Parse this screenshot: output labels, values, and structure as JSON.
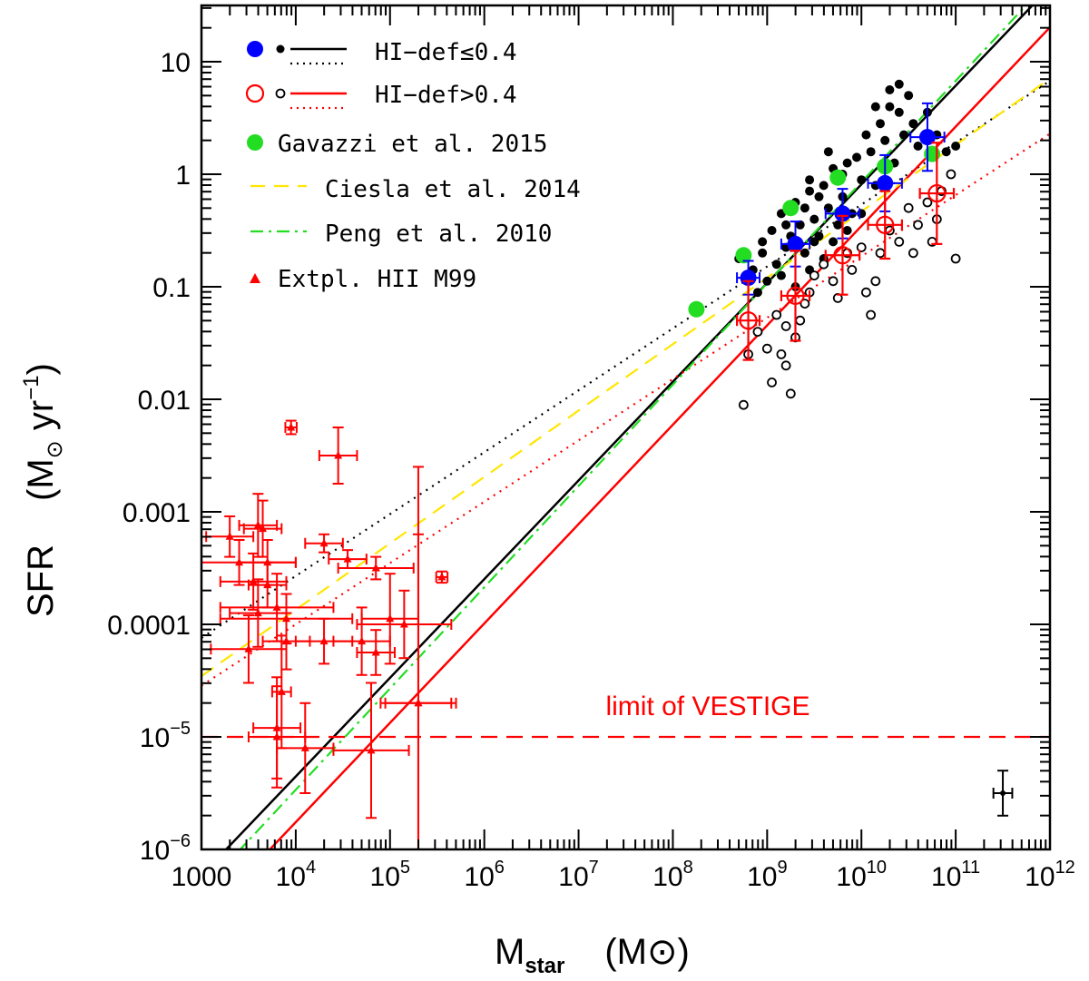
{
  "chart_data": {
    "type": "scatter",
    "xlabel": "M",
    "xlabel_sub": "star",
    "xunit": "(M⊙)",
    "ylabel": "SFR",
    "yunit_prefix": "(M",
    "yunit_sun_sub": "⊙",
    "yunit_rest": " yr",
    "yunit_sup": "−1",
    "yunit_close": ")",
    "xscale": "log",
    "yscale": "log",
    "xlim_log10": [
      3,
      12
    ],
    "ylim_log10": [
      -6,
      1.5
    ],
    "x_ticks": [
      {
        "log": 3,
        "base": "1000",
        "exp": ""
      },
      {
        "log": 4,
        "base": "10",
        "exp": "4"
      },
      {
        "log": 5,
        "base": "10",
        "exp": "5"
      },
      {
        "log": 6,
        "base": "10",
        "exp": "6"
      },
      {
        "log": 7,
        "base": "10",
        "exp": "7"
      },
      {
        "log": 8,
        "base": "10",
        "exp": "8"
      },
      {
        "log": 9,
        "base": "10",
        "exp": "9"
      },
      {
        "log": 10,
        "base": "10",
        "exp": "10"
      },
      {
        "log": 11,
        "base": "10",
        "exp": "11"
      },
      {
        "log": 12,
        "base": "10",
        "exp": "12"
      }
    ],
    "y_ticks": [
      {
        "log": 1,
        "base": "10",
        "exp": ""
      },
      {
        "log": 0,
        "base": "1",
        "exp": ""
      },
      {
        "log": -1,
        "base": "0.1",
        "exp": ""
      },
      {
        "log": -2,
        "base": "0.01",
        "exp": ""
      },
      {
        "log": -3,
        "base": "0.001",
        "exp": ""
      },
      {
        "log": -4,
        "base": "0.0001",
        "exp": ""
      },
      {
        "log": -5,
        "base": "10",
        "exp": "−5"
      },
      {
        "log": -6,
        "base": "10",
        "exp": "−6"
      }
    ],
    "legend": {
      "placement": "top-left",
      "entries": [
        {
          "label": "HI−def≤0.4",
          "color": "#000000"
        },
        {
          "label": "HI−def>0.4",
          "color": "#ff0000"
        },
        {
          "label": "Gavazzi et al. 2015",
          "color": "#22dd22"
        },
        {
          "label": "Ciesla et al. 2014",
          "color": "#ffe600"
        },
        {
          "label": "Peng et al. 2010",
          "color": "#22dd22"
        },
        {
          "label": "Extpl. HII M99",
          "color": "#ff0000"
        }
      ]
    },
    "annotation": "limit of VESTIGE",
    "limit_log10_sfr": -5,
    "lines": [
      {
        "name": "HI-def≤0.4 fit",
        "style": "solid",
        "color": "#000000",
        "slope": 0.877,
        "intercept": -8.86
      },
      {
        "name": "HI-def≤0.4 fit (all)",
        "style": "dotted",
        "color": "#000000",
        "slope": 0.55,
        "intercept": -5.77
      },
      {
        "name": "HI-def>0.4 fit",
        "style": "solid",
        "color": "#ff0000",
        "slope": 0.883,
        "intercept": -9.29
      },
      {
        "name": "HI-def>0.4 fit (all)",
        "style": "dotted",
        "color": "#ff0000",
        "slope": 0.545,
        "intercept": -6.18
      },
      {
        "name": "Ciesla et al. 2014",
        "style": "dashed",
        "color": "#ffe600",
        "slope": 0.59,
        "intercept": -6.23
      },
      {
        "name": "Peng et al. 2010",
        "style": "dashdot",
        "color": "#22dd22",
        "slope": 0.9,
        "intercept": -9.07
      }
    ],
    "series": [
      {
        "name": "Gavazzi et al. 2015",
        "color": "#22dd22",
        "points": [
          [
            8.25,
            -1.2
          ],
          [
            8.75,
            -0.72
          ],
          [
            9.25,
            -0.3
          ],
          [
            9.75,
            -0.03
          ],
          [
            10.25,
            0.07
          ],
          [
            10.75,
            0.18
          ]
        ]
      },
      {
        "name": "HI-def≤0.4 binned",
        "color": "#0000ff",
        "points": [
          [
            8.8,
            -0.92,
            0.12,
            0.15
          ],
          [
            9.3,
            -0.62,
            0.15,
            0.2
          ],
          [
            9.8,
            -0.35,
            0.18,
            0.22
          ],
          [
            10.25,
            -0.08,
            0.18,
            0.25
          ],
          [
            10.7,
            0.33,
            0.18,
            0.3
          ]
        ]
      },
      {
        "name": "HI-def>0.4 binned",
        "color": "#ff0000",
        "points": [
          [
            8.8,
            -1.3,
            0.12,
            0.35
          ],
          [
            9.3,
            -1.08,
            0.15,
            0.4
          ],
          [
            9.8,
            -0.72,
            0.18,
            0.35
          ],
          [
            10.25,
            -0.45,
            0.18,
            0.3
          ],
          [
            10.8,
            -0.17,
            0.18,
            0.45
          ]
        ]
      },
      {
        "name": "Extpl. HII M99",
        "color": "#ff0000",
        "points": [
          [
            3.3,
            -3.22,
            0.25,
            0.18
          ],
          [
            3.6,
            -3.9,
            0.3,
            0.3
          ],
          [
            3.55,
            -3.62,
            0.35,
            0.25
          ],
          [
            3.7,
            -3.45,
            0.3,
            0.2
          ],
          [
            3.4,
            -3.45,
            0.6,
            0.2
          ],
          [
            3.8,
            -3.85,
            0.6,
            0.3
          ],
          [
            3.6,
            -3.12,
            0.2,
            0.28
          ],
          [
            3.65,
            -3.15,
            0.2,
            0.25
          ],
          [
            3.7,
            -3.65,
            0.2,
            0.2
          ],
          [
            3.95,
            -2.25,
            0.06,
            0.06
          ],
          [
            4.45,
            -2.5,
            0.2,
            0.25
          ],
          [
            4.3,
            -3.28,
            0.2,
            0.08
          ],
          [
            4.55,
            -3.42,
            0.2,
            0.08
          ],
          [
            4.85,
            -3.5,
            0.4,
            0.1
          ],
          [
            3.9,
            -3.95,
            0.7,
            0.22
          ],
          [
            3.9,
            -4.15,
            0.25,
            0.25
          ],
          [
            3.5,
            -4.22,
            0.4,
            0.3
          ],
          [
            4.3,
            -4.15,
            0.3,
            0.2
          ],
          [
            5.55,
            -3.58,
            0.06,
            0.05
          ],
          [
            3.85,
            -4.6,
            0.1,
            0.5
          ],
          [
            3.8,
            -4.92,
            0.25,
            0.45
          ],
          [
            3.8,
            -5.0,
            0.3,
            0.45
          ],
          [
            4.1,
            -5.1,
            0.3,
            0.4
          ],
          [
            4.7,
            -4.15,
            0.3,
            0.3
          ],
          [
            4.85,
            -4.25,
            0.2,
            0.2
          ],
          [
            4.8,
            -5.12,
            0.4,
            0.6
          ],
          [
            5.3,
            -4.7,
            0.35,
            2.1
          ],
          [
            5.3,
            -4.7,
            0.4,
            1.5
          ],
          [
            5.0,
            -3.95,
            0.3,
            0.4
          ],
          [
            5.15,
            -4.0,
            0.5,
            0.3
          ]
        ]
      },
      {
        "name": "HI-def≤0.4 galaxies",
        "color": "#000000",
        "points": [
          [
            8.7,
            -0.75
          ],
          [
            8.85,
            -0.85
          ],
          [
            8.95,
            -0.6
          ],
          [
            9.05,
            -0.5
          ],
          [
            9.1,
            -0.8
          ],
          [
            9.15,
            -0.35
          ],
          [
            9.2,
            -0.65
          ],
          [
            9.25,
            -0.55
          ],
          [
            9.3,
            -0.25
          ],
          [
            9.35,
            -0.45
          ],
          [
            9.4,
            -0.7
          ],
          [
            9.45,
            -0.15
          ],
          [
            9.5,
            -0.4
          ],
          [
            9.55,
            -0.55
          ],
          [
            9.6,
            -0.1
          ],
          [
            9.65,
            -0.3
          ],
          [
            9.7,
            0.05
          ],
          [
            9.75,
            -0.45
          ],
          [
            9.8,
            -0.2
          ],
          [
            9.85,
            0.1
          ],
          [
            9.9,
            -0.35
          ],
          [
            9.95,
            0.15
          ],
          [
            10.0,
            -0.05
          ],
          [
            10.05,
            0.35
          ],
          [
            10.1,
            0.2
          ],
          [
            10.15,
            -0.1
          ],
          [
            10.2,
            0.45
          ],
          [
            10.25,
            0.3
          ],
          [
            10.3,
            0.6
          ],
          [
            10.35,
            0.1
          ],
          [
            10.4,
            0.55
          ],
          [
            10.45,
            0.35
          ],
          [
            10.5,
            0.7
          ],
          [
            10.55,
            0.45
          ],
          [
            10.6,
            0.25
          ],
          [
            10.7,
            0.55
          ],
          [
            10.8,
            0.35
          ],
          [
            10.9,
            0.2
          ],
          [
            11.0,
            0.25
          ],
          [
            8.9,
            -1.05
          ],
          [
            9.0,
            -0.95
          ],
          [
            9.15,
            -0.9
          ],
          [
            9.3,
            -1.0
          ],
          [
            9.45,
            -0.85
          ],
          [
            9.6,
            -0.75
          ],
          [
            9.7,
            -0.6
          ],
          [
            9.55,
            -0.2
          ],
          [
            9.85,
            -0.5
          ],
          [
            10.0,
            -0.35
          ],
          [
            9.25,
            -0.3
          ],
          [
            9.45,
            -0.05
          ],
          [
            9.65,
            0.2
          ],
          [
            10.15,
            0.6
          ],
          [
            10.3,
            0.75
          ],
          [
            10.4,
            0.8
          ],
          [
            8.95,
            -0.7
          ],
          [
            9.2,
            -0.45
          ],
          [
            9.4,
            -0.3
          ],
          [
            9.5,
            -0.6
          ],
          [
            9.8,
            0.0
          ]
        ]
      },
      {
        "name": "HI-def>0.4 galaxies",
        "color": "#000000",
        "points": [
          [
            8.8,
            -1.6
          ],
          [
            8.9,
            -1.4
          ],
          [
            9.0,
            -1.55
          ],
          [
            9.05,
            -1.85
          ],
          [
            9.1,
            -1.25
          ],
          [
            9.15,
            -1.6
          ],
          [
            9.2,
            -1.7
          ],
          [
            9.25,
            -1.95
          ],
          [
            9.3,
            -1.45
          ],
          [
            9.35,
            -1.3
          ],
          [
            9.4,
            -1.15
          ],
          [
            9.45,
            -1.05
          ],
          [
            9.5,
            -0.9
          ],
          [
            9.6,
            -0.8
          ],
          [
            9.7,
            -0.95
          ],
          [
            9.75,
            -1.1
          ],
          [
            9.85,
            -0.7
          ],
          [
            9.9,
            -0.85
          ],
          [
            10.0,
            -0.65
          ],
          [
            10.05,
            -1.05
          ],
          [
            10.1,
            -1.25
          ],
          [
            10.15,
            -0.95
          ],
          [
            10.2,
            -0.7
          ],
          [
            10.3,
            -0.5
          ],
          [
            10.4,
            -0.6
          ],
          [
            10.5,
            -0.3
          ],
          [
            10.55,
            -0.7
          ],
          [
            10.6,
            -0.45
          ],
          [
            10.7,
            -0.25
          ],
          [
            10.75,
            -0.6
          ],
          [
            10.8,
            -0.4
          ],
          [
            10.85,
            -0.15
          ],
          [
            10.95,
            0.0
          ],
          [
            11.0,
            -0.75
          ],
          [
            8.75,
            -2.05
          ],
          [
            9.2,
            -1.35
          ]
        ]
      }
    ],
    "uncertainty_marker": {
      "x_log10": 11.5,
      "y_log10": -5.5
    }
  }
}
